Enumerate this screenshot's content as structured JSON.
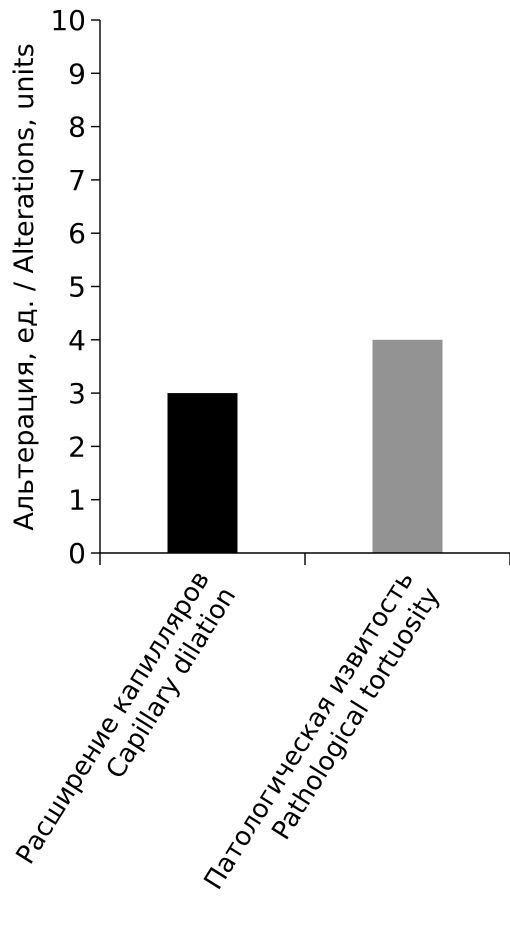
{
  "chart_data": {
    "type": "bar",
    "categories": [
      {
        "line1": "Расширение капилляров",
        "line2": "Capillary dilation"
      },
      {
        "line1": "Патологическая извитость",
        "line2": "Pathological tortuosity"
      }
    ],
    "values": [
      3,
      4
    ],
    "colors": [
      "#000000",
      "#939393"
    ],
    "ylabel": "Альтерация, ед. / Alterations, units",
    "xlabel": "",
    "title": "",
    "ylim": [
      0,
      10
    ],
    "yticks": [
      0,
      1,
      2,
      3,
      4,
      5,
      6,
      7,
      8,
      9,
      10
    ],
    "grid": false,
    "legend": "none"
  }
}
